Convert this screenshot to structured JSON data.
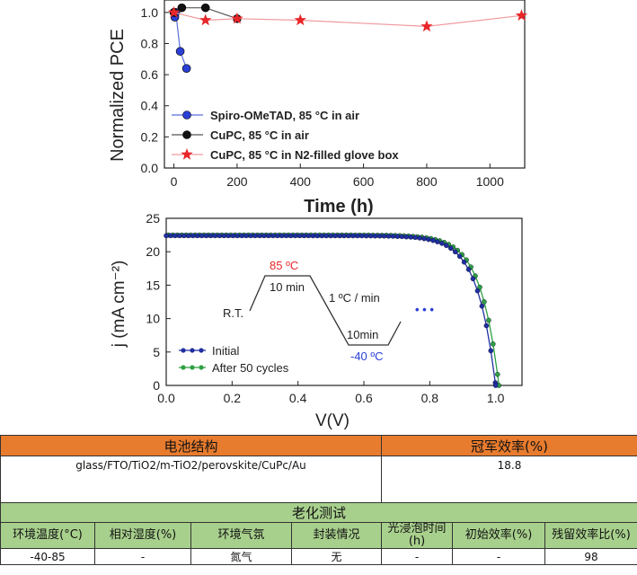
{
  "chart_data": [
    {
      "type": "line",
      "xlabel": "Time (h)",
      "ylabel": "Normalized PCE",
      "xlim": [
        -30,
        1110
      ],
      "ylim": [
        0,
        1.08
      ],
      "xticks": [
        "0",
        "200",
        "400",
        "600",
        "800",
        "1000"
      ],
      "yticks": [
        "0.0",
        "0.2",
        "0.4",
        "0.6",
        "0.8",
        "1.0"
      ],
      "legend_position": "bottom-left",
      "series": [
        {
          "name": "Spiro-OMeTAD, 85 °C in air",
          "color": "#2a3fd6",
          "marker": "circle",
          "x": [
            0,
            3,
            6,
            20,
            40
          ],
          "y": [
            1.0,
            0.97,
            1.0,
            0.75,
            0.64
          ]
        },
        {
          "name": "CuPC, 85 °C in air",
          "color": "#111111",
          "marker": "circle",
          "x": [
            0,
            25,
            100,
            200
          ],
          "y": [
            1.0,
            1.03,
            1.03,
            0.96
          ]
        },
        {
          "name": "CuPC, 85 °C in N2-filled glove box",
          "color": "#e8262a",
          "marker": "star",
          "x": [
            0,
            100,
            200,
            400,
            800,
            1100
          ],
          "y": [
            1.0,
            0.95,
            0.96,
            0.95,
            0.91,
            0.98
          ]
        }
      ]
    },
    {
      "type": "line",
      "xlabel": "V(V)",
      "ylabel": "j (mA cm⁻²)",
      "xlim": [
        0,
        1.08
      ],
      "ylim": [
        0,
        25
      ],
      "xticks": [
        "0.0",
        "0.2",
        "0.4",
        "0.6",
        "0.8",
        "1.0"
      ],
      "yticks": [
        "0",
        "5",
        "10",
        "15",
        "20",
        "25"
      ],
      "legend_position": "bottom-left",
      "inset": {
        "rt": "R.T.",
        "peak": "85 ºC",
        "hold_top": "10 min",
        "ramp": "1 ºC / min",
        "hold_bottom": "10min",
        "low": "-40 ºC",
        "dots": "• • •"
      },
      "series": [
        {
          "name": "Initial",
          "color": "#1f2fa0",
          "jsc": 22.4,
          "voc": 1.0
        },
        {
          "name": "After 50 cycles",
          "color": "#2ea043",
          "jsc": 22.5,
          "voc": 1.01
        }
      ]
    }
  ],
  "table": {
    "structure_header": "电池结构",
    "efficiency_header": "冠军效率(%)",
    "structure_value": "glass/FTO/TiO2/m-TiO2/perovskite/CuPc/Au",
    "efficiency_value": "18.8",
    "aging_header": "老化测试",
    "columns": [
      "环境温度(°C)",
      "相对湿度(%)",
      "环境气氛",
      "封装情况",
      "光浸泡时间(h)",
      "初始效率(%)",
      "残留效率比(%)"
    ],
    "row": [
      "-40-85",
      "-",
      "氮气",
      "无",
      "-",
      "-",
      "98"
    ]
  }
}
